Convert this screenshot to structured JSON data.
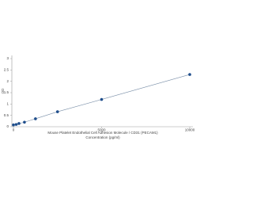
{
  "chart_data": {
    "type": "scatter",
    "x_label": "Concentration (pg/ml)",
    "title": "Mouse Platelet Endothelial Cell Adhesion Molecule / CD31 (PECAM1)",
    "y_label": "OD",
    "x": [
      0,
      156,
      312,
      625,
      1250,
      2500,
      5000,
      10000
    ],
    "values": [
      0.08,
      0.1,
      0.14,
      0.2,
      0.35,
      0.66,
      1.2,
      2.3
    ],
    "color": "#1f4e8c",
    "line_color": "#7a8fa8",
    "xlim": [
      0,
      10000
    ],
    "xticks": [
      0,
      5000,
      10000
    ],
    "ylim": [
      0,
      3
    ],
    "yticks": [
      0,
      0.5,
      1,
      1.5,
      2,
      2.5,
      3
    ]
  }
}
